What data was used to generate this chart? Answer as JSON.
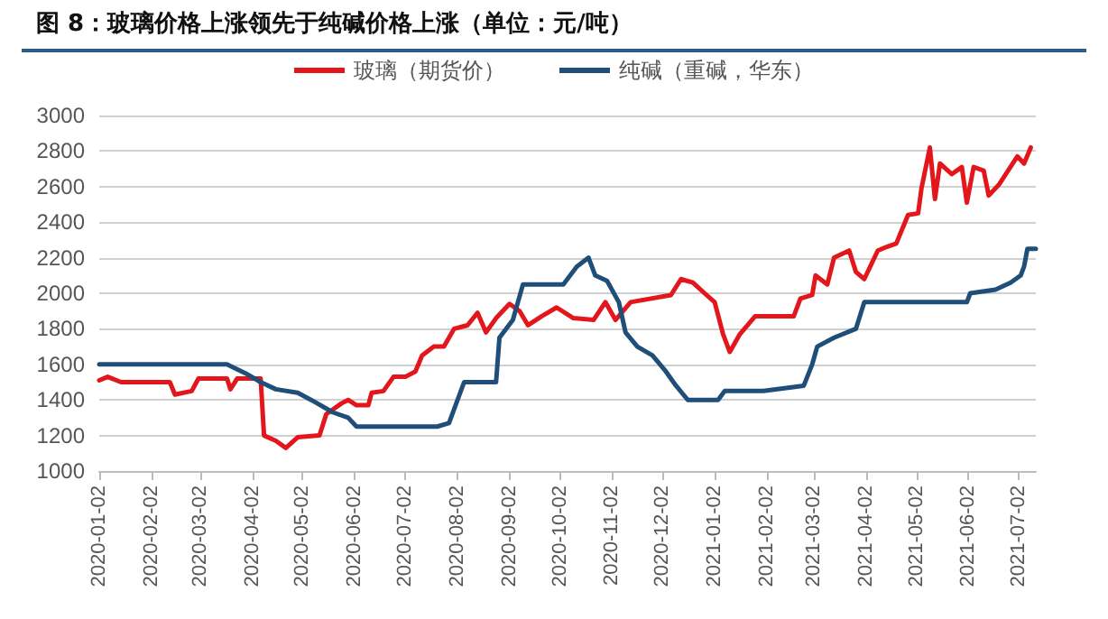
{
  "chart_data": {
    "type": "line",
    "title": "图 8：玻璃价格上涨领先于纯碱价格上涨（单位：元/吨）",
    "series": [
      {
        "name": "玻璃（期货价）",
        "color": "#e3161c",
        "x": [
          "2020-01-02",
          "2020-01-07",
          "2020-01-15",
          "2020-02-13",
          "2020-02-16",
          "2020-02-26",
          "2020-03-01",
          "2020-03-18",
          "2020-03-20",
          "2020-03-24",
          "2020-04-07",
          "2020-04-09",
          "2020-04-16",
          "2020-04-22",
          "2020-04-29",
          "2020-05-12",
          "2020-05-16",
          "2020-05-25",
          "2020-05-29",
          "2020-06-03",
          "2020-06-10",
          "2020-06-12",
          "2020-06-19",
          "2020-06-25",
          "2020-07-02",
          "2020-07-08",
          "2020-07-12",
          "2020-07-19",
          "2020-07-25",
          "2020-07-31",
          "2020-08-08",
          "2020-08-14",
          "2020-08-19",
          "2020-08-25",
          "2020-09-02",
          "2020-09-08",
          "2020-09-13",
          "2020-09-21",
          "2020-09-30",
          "2020-10-10",
          "2020-10-22",
          "2020-10-29",
          "2020-11-04",
          "2020-11-13",
          "2020-12-07",
          "2020-12-13",
          "2020-12-20",
          "2020-12-27",
          "2021-01-02",
          "2021-01-07",
          "2021-01-11",
          "2021-01-17",
          "2021-01-26",
          "2021-02-18",
          "2021-02-22",
          "2021-03-01",
          "2021-03-03",
          "2021-03-10",
          "2021-03-14",
          "2021-03-23",
          "2021-03-27",
          "2021-04-01",
          "2021-04-09",
          "2021-04-14",
          "2021-04-20",
          "2021-04-27",
          "2021-05-03",
          "2021-05-05",
          "2021-05-10",
          "2021-05-13",
          "2021-05-16",
          "2021-05-23",
          "2021-05-29",
          "2021-06-01",
          "2021-06-05",
          "2021-06-11",
          "2021-06-14",
          "2021-06-20",
          "2021-07-01",
          "2021-07-05",
          "2021-07-09"
        ],
        "values": [
          1510,
          1530,
          1500,
          1500,
          1430,
          1450,
          1520,
          1520,
          1460,
          1520,
          1520,
          1200,
          1170,
          1130,
          1190,
          1200,
          1320,
          1380,
          1400,
          1370,
          1370,
          1440,
          1450,
          1530,
          1530,
          1560,
          1650,
          1700,
          1700,
          1800,
          1820,
          1890,
          1780,
          1860,
          1940,
          1900,
          1820,
          1870,
          1920,
          1860,
          1850,
          1950,
          1850,
          1950,
          1990,
          2080,
          2060,
          2000,
          1950,
          1770,
          1670,
          1770,
          1870,
          1870,
          1970,
          1990,
          2100,
          2050,
          2200,
          2240,
          2120,
          2080,
          2240,
          2260,
          2280,
          2440,
          2450,
          2590,
          2820,
          2530,
          2730,
          2670,
          2710,
          2510,
          2710,
          2690,
          2550,
          2610,
          2770,
          2730,
          2820
        ]
      },
      {
        "name": "纯碱（重碱，华东）",
        "color": "#1f4e79",
        "x": [
          "2020-01-02",
          "2020-03-18",
          "2020-03-29",
          "2020-04-07",
          "2020-04-16",
          "2020-04-29",
          "2020-05-07",
          "2020-05-20",
          "2020-05-29",
          "2020-06-03",
          "2020-07-21",
          "2020-07-28",
          "2020-08-06",
          "2020-08-25",
          "2020-08-27",
          "2020-09-04",
          "2020-09-10",
          "2020-10-04",
          "2020-10-12",
          "2020-10-19",
          "2020-10-23",
          "2020-10-30",
          "2020-11-06",
          "2020-11-10",
          "2020-11-17",
          "2020-11-26",
          "2020-12-04",
          "2020-12-10",
          "2020-12-17",
          "2021-01-04",
          "2021-01-08",
          "2021-01-31",
          "2021-02-24",
          "2021-03-01",
          "2021-03-04",
          "2021-03-14",
          "2021-03-27",
          "2021-04-01",
          "2021-06-01",
          "2021-06-03",
          "2021-06-18",
          "2021-06-27",
          "2021-07-03",
          "2021-07-05",
          "2021-07-07",
          "2021-07-12"
        ],
        "values": [
          1600,
          1600,
          1550,
          1500,
          1460,
          1440,
          1400,
          1330,
          1300,
          1250,
          1250,
          1270,
          1500,
          1500,
          1750,
          1850,
          2050,
          2050,
          2150,
          2200,
          2100,
          2070,
          1950,
          1780,
          1700,
          1650,
          1560,
          1480,
          1400,
          1400,
          1450,
          1450,
          1480,
          1600,
          1700,
          1750,
          1800,
          1950,
          1950,
          2000,
          2020,
          2060,
          2100,
          2150,
          2250,
          2250
        ]
      }
    ],
    "xlim": [
      "2020-01-02",
      "2021-07-12"
    ],
    "xticks": [
      "2020-01-02",
      "2020-02-02",
      "2020-03-02",
      "2020-04-02",
      "2020-05-02",
      "2020-06-02",
      "2020-07-02",
      "2020-08-02",
      "2020-09-02",
      "2020-10-02",
      "2020-11-02",
      "2020-12-02",
      "2021-01-02",
      "2021-02-02",
      "2021-03-02",
      "2021-04-02",
      "2021-05-02",
      "2021-06-02",
      "2021-07-02"
    ],
    "ylim": [
      1000,
      3000
    ],
    "yticks": [
      1000,
      1200,
      1400,
      1600,
      1800,
      2000,
      2200,
      2400,
      2600,
      2800,
      3000
    ],
    "grid": "y",
    "legend": "top",
    "marker": "none",
    "line_style": "solid"
  }
}
